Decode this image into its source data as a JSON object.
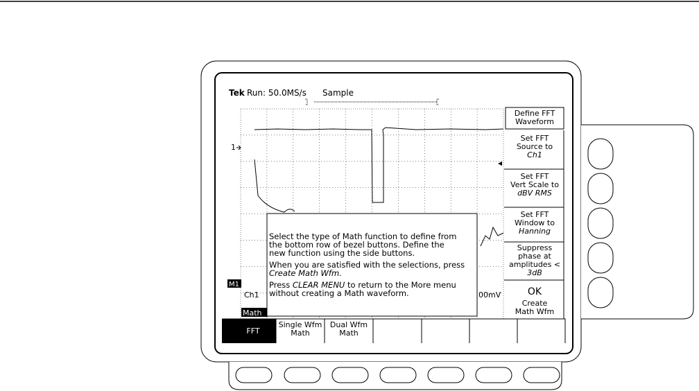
{
  "status_bar": {
    "brand": "Tek",
    "run": "Run: 50.0MS/s",
    "mode": "Sample"
  },
  "display": {
    "ch1_marker": "1",
    "math_marker": "M1",
    "ch1_label": "Ch1",
    "scale_label": "00mV",
    "math_label": "Math"
  },
  "message": {
    "lines": [
      [
        "Select the type of Math function to define from"
      ],
      [
        "the bottom row of bezel buttons. Define the"
      ],
      [
        "new function using the side buttons."
      ],
      [
        "When you are satisfied with the selections, press"
      ],
      [
        "Create Math Wfm."
      ],
      [
        "Press ",
        "CLEAR MENU",
        " to return to the More menu"
      ],
      [
        "without creating a Math waveform."
      ]
    ]
  },
  "side_menu": {
    "items": [
      [
        "Define FFT",
        "Waveform"
      ],
      [
        "Set FFT",
        "Source to",
        "Ch1"
      ],
      [
        "Set FFT",
        "Vert Scale to",
        "dBV RMS"
      ],
      [
        "Set FFT",
        "Window to",
        "Hanning"
      ],
      [
        "Suppress",
        "phase at",
        "amplitudes <",
        "3dB"
      ],
      [
        "OK",
        "Create",
        "Math Wfm"
      ]
    ]
  },
  "bottom_menu": {
    "items": [
      [
        "FFT"
      ],
      [
        "Single Wfm",
        "Math"
      ],
      [
        "Dual Wfm",
        "Math"
      ]
    ]
  }
}
